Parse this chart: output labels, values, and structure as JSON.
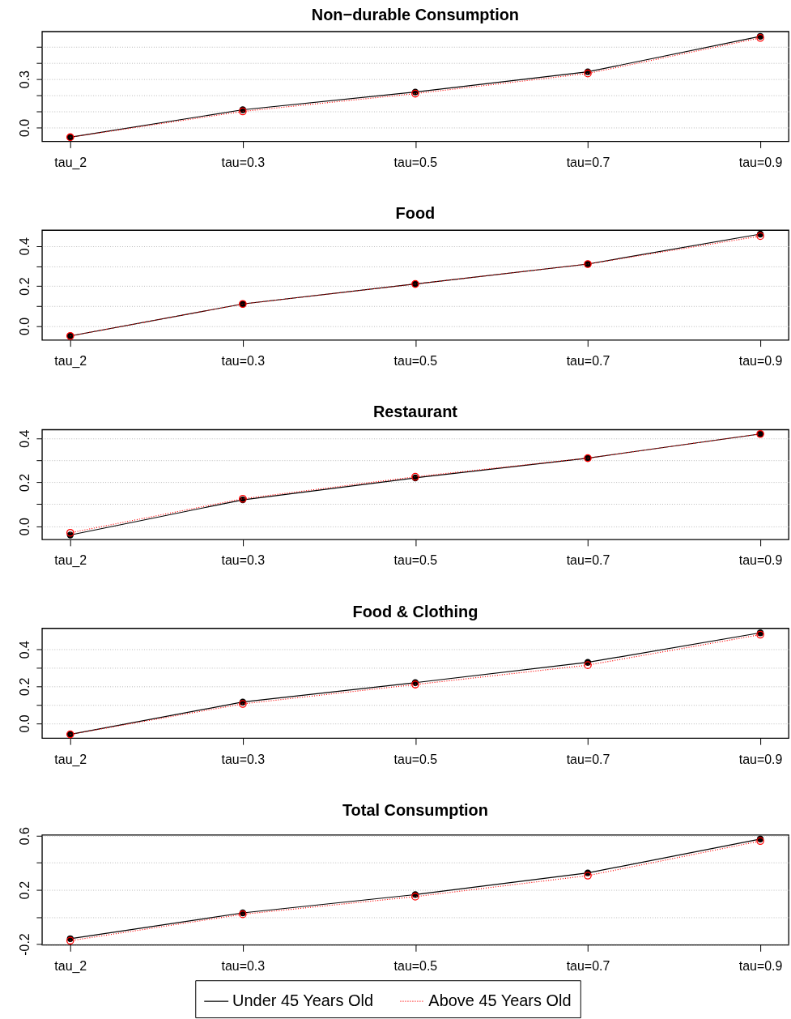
{
  "chart_data": [
    {
      "type": "line",
      "title": "Non−durable Consumption",
      "categories": [
        "tau_2",
        "tau=0.3",
        "tau=0.5",
        "tau=0.7",
        "tau=0.9"
      ],
      "ylim": [
        -0.085,
        0.595
      ],
      "yticks": [
        {
          "value": 0,
          "label": "0.0"
        },
        {
          "value": 0.1,
          "label": null
        },
        {
          "value": 0.2,
          "label": null
        },
        0.3,
        {
          "value": 0.4,
          "label": null
        },
        {
          "value": 0.5,
          "label": null
        }
      ],
      "grid": "y",
      "series": [
        {
          "color": "#000000",
          "marker": "circle",
          "line_style": "solid",
          "values": [
            -0.06,
            0.11,
            0.22,
            0.345,
            0.565
          ]
        },
        {
          "color": "#ff0000",
          "marker": "circle",
          "line_style": "dotted",
          "values": [
            -0.06,
            0.1,
            0.21,
            0.335,
            0.555
          ]
        }
      ]
    },
    {
      "type": "line",
      "title": "Food",
      "categories": [
        "tau_2",
        "tau=0.3",
        "tau=0.5",
        "tau=0.7",
        "tau=0.9"
      ],
      "ylim": [
        -0.07,
        0.48
      ],
      "yticks": [
        {
          "value": 0,
          "label": "0.0"
        },
        {
          "value": 0.1,
          "label": null
        },
        0.2,
        {
          "value": 0.3,
          "label": null
        },
        0.4
      ],
      "grid": "y",
      "series": [
        {
          "color": "#000000",
          "marker": "circle",
          "line_style": "solid",
          "values": [
            -0.05,
            0.11,
            0.21,
            0.31,
            0.46
          ]
        },
        {
          "color": "#ff0000",
          "marker": "circle",
          "line_style": "dotted",
          "values": [
            -0.05,
            0.11,
            0.21,
            0.31,
            0.45
          ]
        }
      ]
    },
    {
      "type": "line",
      "title": "Restaurant",
      "categories": [
        "tau_2",
        "tau=0.3",
        "tau=0.5",
        "tau=0.7",
        "tau=0.9"
      ],
      "ylim": [
        -0.06,
        0.44
      ],
      "yticks": [
        {
          "value": 0,
          "label": "0.0"
        },
        {
          "value": 0.1,
          "label": null
        },
        0.2,
        {
          "value": 0.3,
          "label": null
        },
        0.4
      ],
      "grid": "y",
      "series": [
        {
          "color": "#000000",
          "marker": "circle",
          "line_style": "solid",
          "values": [
            -0.04,
            0.12,
            0.22,
            0.31,
            0.42
          ]
        },
        {
          "color": "#ff0000",
          "marker": "circle",
          "line_style": "dotted",
          "values": [
            -0.03,
            0.125,
            0.225,
            0.31,
            0.42
          ]
        }
      ]
    },
    {
      "type": "line",
      "title": "Food & Clothing",
      "categories": [
        "tau_2",
        "tau=0.3",
        "tau=0.5",
        "tau=0.7",
        "tau=0.9"
      ],
      "ylim": [
        -0.08,
        0.515
      ],
      "yticks": [
        {
          "value": 0,
          "label": "0.0"
        },
        {
          "value": 0.1,
          "label": null
        },
        0.2,
        {
          "value": 0.3,
          "label": null
        },
        0.4
      ],
      "grid": "y",
      "series": [
        {
          "color": "#000000",
          "marker": "circle",
          "line_style": "solid",
          "values": [
            -0.06,
            0.115,
            0.22,
            0.33,
            0.49
          ]
        },
        {
          "color": "#ff0000",
          "marker": "circle",
          "line_style": "dotted",
          "values": [
            -0.06,
            0.105,
            0.21,
            0.315,
            0.48
          ]
        }
      ]
    },
    {
      "type": "line",
      "title": "Total Consumption",
      "categories": [
        "tau_2",
        "tau=0.3",
        "tau=0.5",
        "tau=0.7",
        "tau=0.9"
      ],
      "ylim": [
        -0.205,
        0.605
      ],
      "yticks": [
        -0.2,
        {
          "value": 0,
          "label": null
        },
        0.2,
        {
          "value": 0.4,
          "label": null
        },
        0.6
      ],
      "grid": "y",
      "legend": "bottom",
      "series": [
        {
          "name": "Under 45 Years Old",
          "color": "#000000",
          "marker": "circle",
          "line_style": "solid",
          "values": [
            -0.16,
            0.03,
            0.165,
            0.325,
            0.575
          ]
        },
        {
          "name": "Above 45 Years Old",
          "color": "#ff0000",
          "marker": "circle",
          "line_style": "dotted",
          "values": [
            -0.175,
            0.02,
            0.15,
            0.305,
            0.56
          ]
        }
      ]
    }
  ]
}
